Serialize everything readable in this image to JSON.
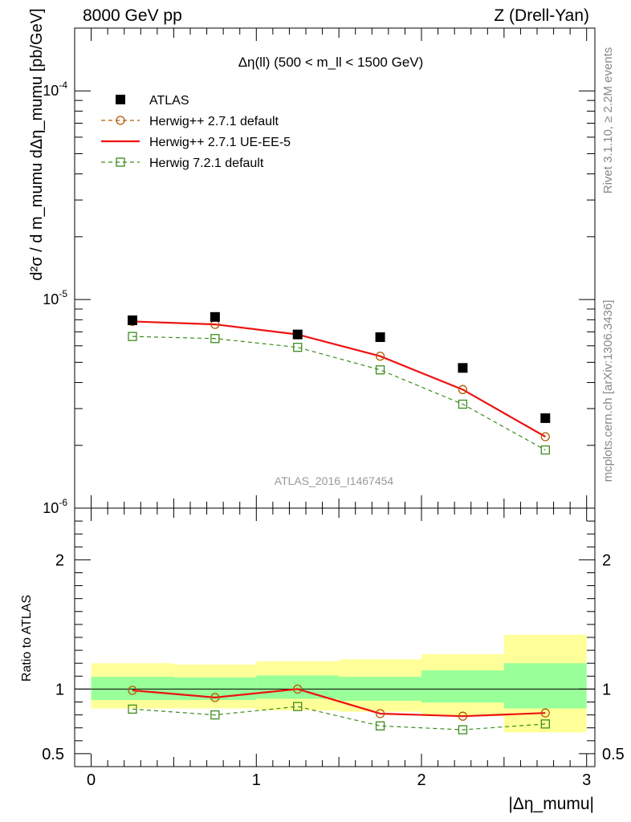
{
  "header": {
    "left": "8000 GeV pp",
    "right": "Z (Drell-Yan)"
  },
  "side_labels": {
    "rivet": "Rivet 3.1.10, ≥ 2.2M events",
    "mcplots": "mcplots.cern.ch [arXiv:1306.3436]"
  },
  "chart_data": [
    {
      "type": "scatter",
      "panel": "main",
      "title": "Δη(ll) (500 < m_ll < 1500 GeV)",
      "ylabel": "d²σ / d m_mumu dΔη_mumu [pb/GeV]",
      "yscale": "log",
      "ylim": [
        1e-06,
        0.0002
      ],
      "xlim": [
        -0.1,
        3.05
      ],
      "y_tick_labels": [
        "10^-6",
        "10^-5",
        "10^-4"
      ],
      "watermark": "ATLAS_2016_I1467454",
      "legend_position": "top-left",
      "x": [
        0.25,
        0.75,
        1.25,
        1.75,
        2.25,
        2.75
      ],
      "series": [
        {
          "name": "ATLAS",
          "style": "filled-square",
          "color": "#000000",
          "values": [
            7.95e-06,
            8.25e-06,
            6.8e-06,
            6.6e-06,
            4.7e-06,
            2.7e-06
          ]
        },
        {
          "name": "Herwig++ 2.7.1 default",
          "style": "open-circle-dashed",
          "color": "#b05c00",
          "values": [
            7.85e-06,
            7.6e-06,
            6.8e-06,
            5.35e-06,
            3.7e-06,
            2.2e-06
          ]
        },
        {
          "name": "Herwig++ 2.7.1 UE-EE-5",
          "style": "solid-line",
          "color": "#ee1111",
          "values": [
            7.85e-06,
            7.6e-06,
            6.8e-06,
            5.35e-06,
            3.7e-06,
            2.2e-06
          ]
        },
        {
          "name": "Herwig 7.2.1 default",
          "style": "open-square-dashed",
          "color": "#3c8c1c",
          "values": [
            6.65e-06,
            6.5e-06,
            5.9e-06,
            4.6e-06,
            3.15e-06,
            1.9e-06
          ]
        }
      ]
    },
    {
      "type": "line",
      "panel": "ratio",
      "ylabel": "Ratio to ATLAS",
      "xlabel": "|Δη_mumu|",
      "ylim": [
        0.4,
        2.4
      ],
      "xlim": [
        -0.1,
        3.05
      ],
      "y_tick_labels": [
        "0.5",
        "1",
        "2"
      ],
      "x_tick_labels": [
        "0",
        "1",
        "2",
        "3"
      ],
      "bins": [
        [
          0,
          0.5
        ],
        [
          0.5,
          1.0
        ],
        [
          1.0,
          1.5
        ],
        [
          1.5,
          2.0
        ],
        [
          2.0,
          2.5
        ],
        [
          2.5,
          3.0
        ]
      ],
      "stat_band": [
        [
          0.915,
          1.095
        ],
        [
          0.915,
          1.09
        ],
        [
          0.925,
          1.105
        ],
        [
          0.91,
          1.095
        ],
        [
          0.895,
          1.145
        ],
        [
          0.85,
          1.2
        ]
      ],
      "total_band": [
        [
          0.85,
          1.2
        ],
        [
          0.85,
          1.19
        ],
        [
          0.835,
          1.215
        ],
        [
          0.825,
          1.23
        ],
        [
          0.79,
          1.27
        ],
        [
          0.665,
          1.42
        ]
      ],
      "x": [
        0.25,
        0.75,
        1.25,
        1.75,
        2.25,
        2.75
      ],
      "series": [
        {
          "name": "Herwig++ 2.7.1 default",
          "color": "#b05c00",
          "values": [
            0.99,
            0.935,
            1.0,
            0.81,
            0.79,
            0.815
          ]
        },
        {
          "name": "Herwig++ 2.7.1 UE-EE-5",
          "color": "#ee1111",
          "values": [
            0.99,
            0.935,
            1.0,
            0.81,
            0.79,
            0.815
          ]
        },
        {
          "name": "Herwig 7.2.1 default",
          "color": "#3c8c1c",
          "values": [
            0.845,
            0.8,
            0.865,
            0.715,
            0.685,
            0.73
          ]
        }
      ]
    }
  ]
}
